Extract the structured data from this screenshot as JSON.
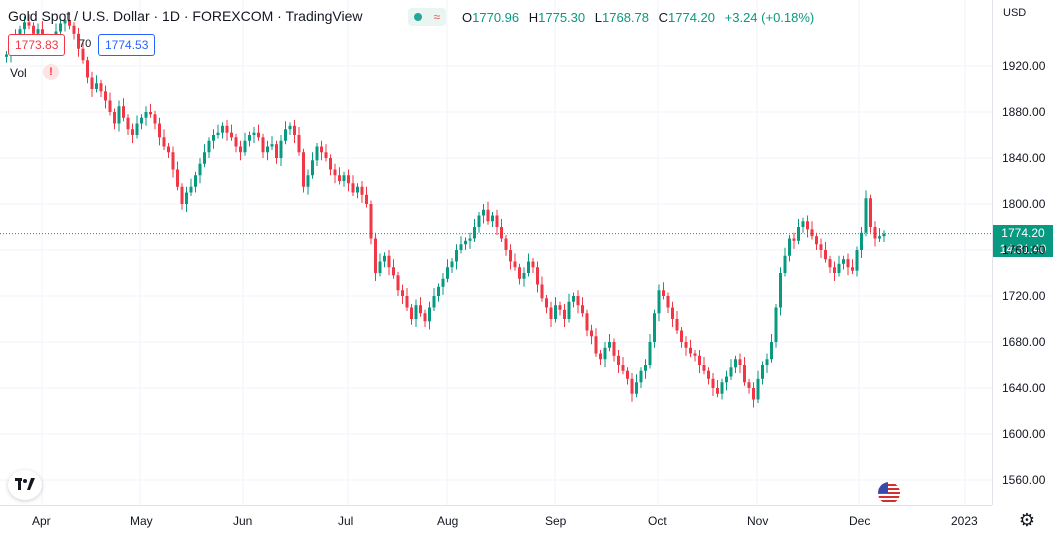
{
  "header": {
    "title": "Gold Spot / U.S. Dollar · 1D · FOREXCOM · TradingView",
    "open_label": "O",
    "open": "1770.96",
    "high_label": "H",
    "high": "1775.30",
    "low_label": "L",
    "low": "1768.78",
    "close_label": "C",
    "close": "1774.20",
    "change": "+3.24 (+0.18%)"
  },
  "trade": {
    "sell": "1773.83",
    "spread": "70",
    "buy": "1774.53"
  },
  "indicator": {
    "label": "Vol",
    "warning": "!"
  },
  "price_axis": {
    "currency": "USD",
    "last_price": "1774.20",
    "countdown": "14:31:40"
  },
  "colors": {
    "up": "#089981",
    "down": "#f23645",
    "grid": "#f0f3fa",
    "last_line": "#089981"
  },
  "icons": {
    "logo": "tradingview-logo-icon",
    "flag": "us-flag-icon",
    "settings": "gear-icon"
  },
  "chart_data": {
    "type": "candlestick",
    "y_ticks": [
      "1920.00",
      "1880.00",
      "1840.00",
      "1800.00",
      "1760.00",
      "1720.00",
      "1680.00",
      "1640.00",
      "1600.00",
      "1560.00"
    ],
    "x_ticks": [
      "Apr",
      "May",
      "Jun",
      "Jul",
      "Aug",
      "Sep",
      "Oct",
      "Nov",
      "Dec",
      "2023"
    ],
    "ylim": [
      1545,
      1960
    ],
    "last_close": 1774.2,
    "close_series": [
      1930,
      1938,
      1945,
      1952,
      1958,
      1955,
      1948,
      1952,
      1945,
      1940,
      1938,
      1950,
      1957,
      1960,
      1955,
      1948,
      1935,
      1925,
      1910,
      1900,
      1905,
      1898,
      1890,
      1880,
      1870,
      1885,
      1875,
      1865,
      1860,
      1870,
      1875,
      1880,
      1878,
      1870,
      1858,
      1850,
      1845,
      1830,
      1815,
      1800,
      1810,
      1815,
      1825,
      1835,
      1845,
      1855,
      1860,
      1862,
      1868,
      1862,
      1858,
      1850,
      1845,
      1855,
      1860,
      1862,
      1858,
      1845,
      1850,
      1852,
      1840,
      1855,
      1865,
      1868,
      1860,
      1845,
      1815,
      1825,
      1838,
      1850,
      1845,
      1840,
      1830,
      1825,
      1820,
      1825,
      1818,
      1810,
      1815,
      1808,
      1800,
      1770,
      1740,
      1750,
      1755,
      1745,
      1738,
      1725,
      1720,
      1710,
      1700,
      1712,
      1705,
      1698,
      1710,
      1720,
      1728,
      1735,
      1745,
      1750,
      1760,
      1765,
      1768,
      1770,
      1780,
      1790,
      1795,
      1785,
      1790,
      1780,
      1770,
      1760,
      1750,
      1745,
      1735,
      1740,
      1750,
      1745,
      1730,
      1718,
      1710,
      1700,
      1712,
      1708,
      1700,
      1715,
      1720,
      1712,
      1705,
      1690,
      1685,
      1670,
      1665,
      1675,
      1680,
      1668,
      1660,
      1655,
      1648,
      1635,
      1645,
      1655,
      1660,
      1680,
      1705,
      1725,
      1720,
      1710,
      1700,
      1690,
      1680,
      1675,
      1670,
      1668,
      1660,
      1655,
      1648,
      1640,
      1635,
      1645,
      1650,
      1658,
      1665,
      1660,
      1645,
      1640,
      1630,
      1648,
      1660,
      1665,
      1680,
      1710,
      1740,
      1755,
      1770,
      1768,
      1780,
      1785,
      1778,
      1772,
      1765,
      1760,
      1752,
      1745,
      1740,
      1748,
      1752,
      1745,
      1742,
      1760,
      1775,
      1805,
      1780,
      1770,
      1772,
      1774.2
    ]
  }
}
